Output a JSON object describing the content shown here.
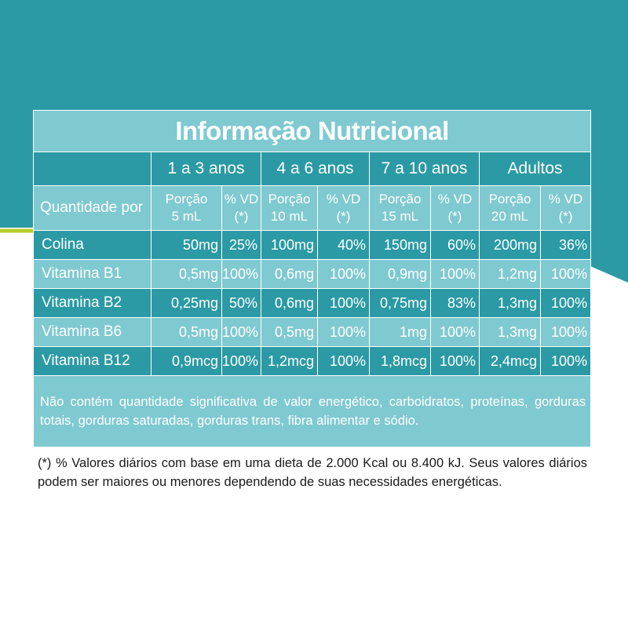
{
  "colors": {
    "teal_dark": "#2b9aa4",
    "teal_light": "#7fc9d1",
    "accent_lime": "#b8cc2a"
  },
  "title": "Informação Nutricional",
  "age_groups": [
    "1 a 3 anos",
    "4 a 6 anos",
    "7 a 10 anos",
    "Adultos"
  ],
  "subheader": {
    "label": "Quantidade por",
    "columns": [
      [
        "Porção",
        "5 mL",
        "% VD",
        "(*)"
      ],
      [
        "Porção",
        "10 mL",
        "% VD",
        "(*)"
      ],
      [
        "Porção",
        "15 mL",
        "% VD",
        "(*)"
      ],
      [
        "Porção",
        "20 mL",
        "% VD",
        "(*)"
      ]
    ]
  },
  "rows": [
    {
      "name": "Colina",
      "cells": [
        "50mg",
        "25%",
        "100mg",
        "40%",
        "150mg",
        "60%",
        "200mg",
        "36%"
      ]
    },
    {
      "name": "Vitamina B1",
      "cells": [
        "0,5mg",
        "100%",
        "0,6mg",
        "100%",
        "0,9mg",
        "100%",
        "1,2mg",
        "100%"
      ]
    },
    {
      "name": "Vitamina B2",
      "cells": [
        "0,25mg",
        "50%",
        "0,6mg",
        "100%",
        "0,75mg",
        "83%",
        "1,3mg",
        "100%"
      ]
    },
    {
      "name": "Vitamina B6",
      "cells": [
        "0,5mg",
        "100%",
        "0,5mg",
        "100%",
        "1mg",
        "100%",
        "1,3mg",
        "100%"
      ]
    },
    {
      "name": "Vitamina B12",
      "cells": [
        "0,9mcg",
        "100%",
        "1,2mcg",
        "100%",
        "1,8mcg",
        "100%",
        "2,4mcg",
        "100%"
      ]
    }
  ],
  "note": "Não contém quantidade significativa de valor energético, carboidratos, proteínas, gorduras totais, gorduras saturadas, gorduras trans, fibra alimentar e sódio.",
  "footnote": "(*) % Valores diários com base em uma dieta de 2.000 Kcal ou 8.400 kJ. Seus valores diários podem ser maiores ou menores dependendo de suas necessidades energéticas."
}
